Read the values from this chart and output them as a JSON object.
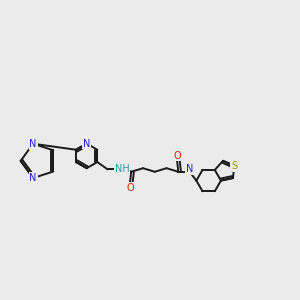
{
  "bg_color": "#ebebeb",
  "bond_color": "#1a1a1a",
  "N_color": "#2222cc",
  "O_color": "#cc2200",
  "S_color": "#999900",
  "lw": 1.4,
  "figsize": [
    3.0,
    3.0
  ],
  "dpi": 100,
  "xlim": [
    0,
    10
  ],
  "ylim": [
    3.0,
    7.5
  ]
}
